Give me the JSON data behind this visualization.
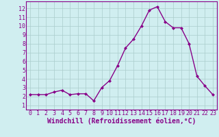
{
  "x": [
    0,
    1,
    2,
    3,
    4,
    5,
    6,
    7,
    8,
    9,
    10,
    11,
    12,
    13,
    14,
    15,
    16,
    17,
    18,
    19,
    20,
    21,
    22,
    23
  ],
  "y": [
    2.2,
    2.2,
    2.2,
    2.5,
    2.7,
    2.2,
    2.3,
    2.3,
    1.5,
    3.0,
    3.8,
    5.5,
    7.5,
    8.5,
    10.0,
    11.8,
    12.2,
    10.5,
    9.8,
    9.8,
    8.0,
    4.3,
    3.2,
    2.2
  ],
  "line_color": "#880088",
  "marker": "D",
  "marker_size": 2,
  "bg_color": "#d0eef0",
  "grid_color": "#aacccc",
  "xlabel": "Windchill (Refroidissement éolien,°C)",
  "xlim": [
    -0.5,
    23.5
  ],
  "ylim": [
    0.5,
    12.8
  ],
  "yticks": [
    1,
    2,
    3,
    4,
    5,
    6,
    7,
    8,
    9,
    10,
    11,
    12
  ],
  "xticks": [
    0,
    1,
    2,
    3,
    4,
    5,
    6,
    7,
    8,
    9,
    10,
    11,
    12,
    13,
    14,
    15,
    16,
    17,
    18,
    19,
    20,
    21,
    22,
    23
  ],
  "xlabel_fontsize": 7,
  "tick_fontsize": 6,
  "line_width": 1.0
}
